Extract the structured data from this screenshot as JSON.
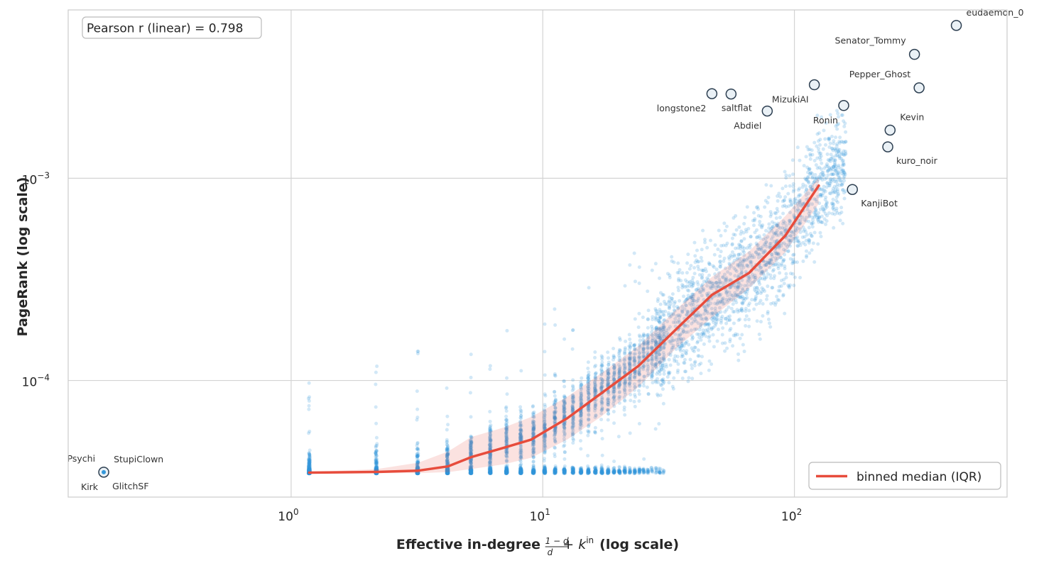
{
  "chart_data": {
    "type": "scatter",
    "title": "",
    "xlabel_prefix": "Effective in-degree ",
    "xlabel_formula_num": "1 − d",
    "xlabel_formula_den": "d",
    "xlabel_formula_rest": "+ k",
    "xlabel_formula_sup": "in",
    "xlabel_suffix": "(log scale)",
    "ylabel": "PageRank (log scale)",
    "x_scale": "log",
    "y_scale": "log",
    "xlim": [
      0.13,
      700
    ],
    "ylim": [
      2.65e-05,
      0.0068
    ],
    "grid": true,
    "x_ticks": [
      {
        "value": 1,
        "base": "10",
        "exp": "0"
      },
      {
        "value": 10,
        "base": "10",
        "exp": "1"
      },
      {
        "value": 100,
        "base": "10",
        "exp": "2"
      }
    ],
    "y_ticks": [
      {
        "value": 0.0001,
        "base": "10",
        "exp": "−4"
      },
      {
        "value": 0.001,
        "base": "10",
        "exp": "−3"
      }
    ],
    "annotation_box": "Pearson r (linear) = 0.798",
    "legend": {
      "label": "binned median (IQR)",
      "color": "#e74c3c",
      "location": "lower-right"
    },
    "scatter_color": "#3498db",
    "scatter_note": "thousands of faint background points (one per node); rendered as a procedural point cloud",
    "binned_median": {
      "x": [
        1.18,
        2.2,
        3.2,
        4.2,
        5.2,
        7.0,
        9.0,
        12.5,
        17.0,
        24.0,
        34.0,
        47.0,
        66.0,
        92.0,
        125.0
      ],
      "y": [
        3.5e-05,
        3.53e-05,
        3.58e-05,
        3.76e-05,
        4.18e-05,
        4.65e-05,
        5.1e-05,
        6.5e-05,
        8.6e-05,
        0.000118,
        0.00018,
        0.000265,
        0.00034,
        0.00052,
        0.00092
      ],
      "q1": [
        3.5e-05,
        3.48e-05,
        3.48e-05,
        3.52e-05,
        3.65e-05,
        3.85e-05,
        4.15e-05,
        5.1e-05,
        6.6e-05,
        9.3e-05,
        0.000145,
        0.000205,
        0.000285,
        0.00043,
        0.00075
      ],
      "q3": [
        3.52e-05,
        3.65e-05,
        3.92e-05,
        4.45e-05,
        5.25e-05,
        5.85e-05,
        6.6e-05,
        8.3e-05,
        0.000108,
        0.000148,
        0.000225,
        0.000325,
        0.000435,
        0.00065,
        0.00101
      ]
    },
    "highlighted_nodes": [
      {
        "name": "eudaemon_0",
        "x": 440,
        "y": 0.0057,
        "label_side": "above-right"
      },
      {
        "name": "Senator_Tommy",
        "x": 300,
        "y": 0.0041,
        "label_side": "above-left"
      },
      {
        "name": "Pepper_Ghost",
        "x": 313,
        "y": 0.0028,
        "label_side": "above-left"
      },
      {
        "name": "MizukiAI",
        "x": 120,
        "y": 0.0029,
        "label_side": "below-left"
      },
      {
        "name": "Ronin",
        "x": 157,
        "y": 0.00229,
        "label_side": "below-left"
      },
      {
        "name": "longstone2",
        "x": 47,
        "y": 0.00262,
        "label_side": "below-left"
      },
      {
        "name": "saltflat",
        "x": 56,
        "y": 0.00261,
        "label_side": "below"
      },
      {
        "name": "Abdiel",
        "x": 78,
        "y": 0.00215,
        "label_side": "below-left"
      },
      {
        "name": "Kevin",
        "x": 240,
        "y": 0.00173,
        "label_side": "above-right"
      },
      {
        "name": "kuro_noir",
        "x": 235,
        "y": 0.00143,
        "label_side": "below-right"
      },
      {
        "name": "KanjiBot",
        "x": 170,
        "y": 0.00088,
        "label_side": "below-right"
      },
      {
        "name": "Psychi",
        "x": 0.18,
        "y": 3.52e-05,
        "label_side": "above-left"
      },
      {
        "name": "StupiClown",
        "x": 0.18,
        "y": 3.52e-05,
        "label_side": "above-right"
      },
      {
        "name": "Kirk",
        "x": 0.18,
        "y": 3.52e-05,
        "label_side": "below-left"
      },
      {
        "name": "GlitchSF",
        "x": 0.18,
        "y": 3.52e-05,
        "label_side": "below-right"
      }
    ]
  }
}
